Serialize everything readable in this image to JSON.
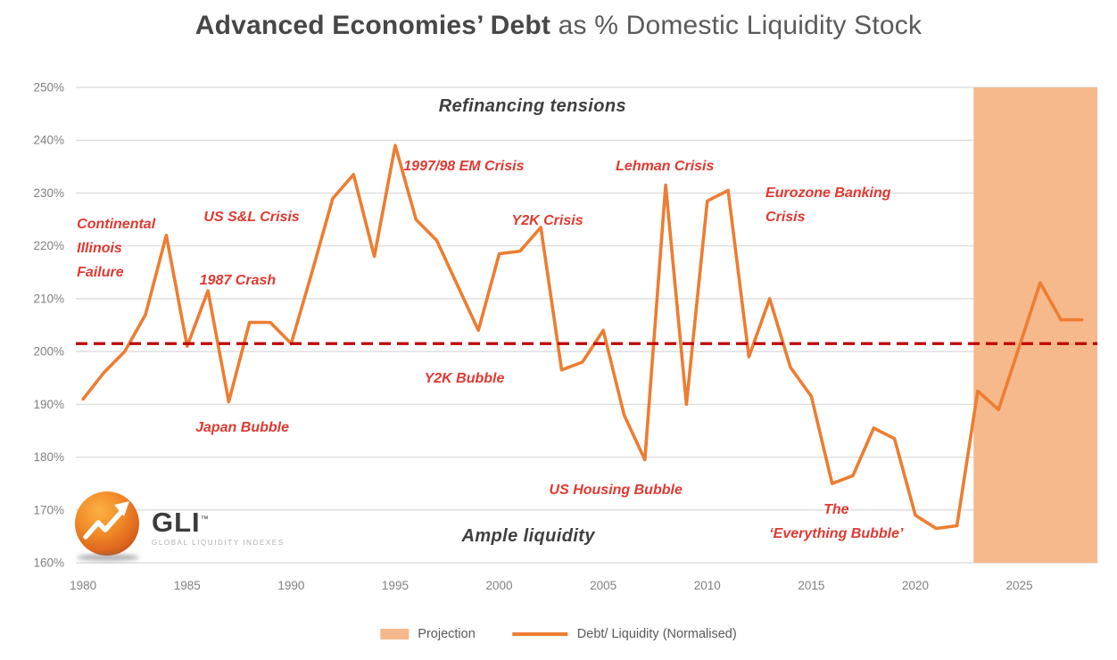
{
  "title": {
    "bold": "Advanced Economies’ Debt",
    "rest": " as % Domestic Liquidity Stock"
  },
  "logo": {
    "name": "GLI",
    "tm": "™",
    "tagline": "GLOBAL LIQUIDITY INDEXES"
  },
  "legend": [
    {
      "type": "patch",
      "label": "Projection",
      "color": "#F6B98C"
    },
    {
      "type": "line",
      "label": "Debt/ Liquidity (Normalised)",
      "color": "#ED7D31"
    }
  ],
  "colors": {
    "line": "#ED7D31",
    "projection_band": "#F6B98C",
    "baseline": "#C00000",
    "grid": "#D9D9D9",
    "axis_text": "#808080",
    "crisis_label": "#E03931",
    "regime_label": "#3F3F3F",
    "title_text": "#474747",
    "legend_text": "#595959"
  },
  "chart_data": {
    "type": "line",
    "title": "Advanced Economies’ Debt as % Domestic Liquidity Stock",
    "xlabel": "",
    "ylabel": "",
    "xlim": [
      1979.65,
      2028.75
    ],
    "ylim": [
      160,
      250
    ],
    "grid": "horizontal",
    "legend_position": "bottom",
    "x": [
      1980,
      1981,
      1982,
      1983,
      1984,
      1985,
      1986,
      1987,
      1988,
      1989,
      1990,
      1991,
      1992,
      1993,
      1994,
      1995,
      1996,
      1997,
      1998,
      1999,
      2000,
      2001,
      2002,
      2003,
      2004,
      2005,
      2006,
      2007,
      2008,
      2009,
      2010,
      2011,
      2012,
      2013,
      2014,
      2015,
      2016,
      2017,
      2018,
      2019,
      2020,
      2021,
      2022,
      2023,
      2024,
      2025,
      2026,
      2027,
      2028
    ],
    "series": [
      {
        "name": "Debt/ Liquidity (Normalised)",
        "values": [
          191,
          196,
          200,
          207,
          222,
          201,
          211.5,
          190.5,
          205.5,
          205.5,
          201.5,
          215,
          229,
          233.5,
          218,
          239,
          225,
          221,
          212.5,
          204,
          218.5,
          219,
          223.5,
          196.5,
          198,
          204,
          188,
          179.5,
          231.5,
          190,
          228.5,
          230.5,
          199,
          210,
          197,
          191.5,
          175,
          176.5,
          185.5,
          183.5,
          169,
          166.5,
          167,
          192.5,
          189,
          201,
          213,
          206,
          206
        ]
      }
    ],
    "baseline": {
      "value": 201.5,
      "style": "dashed"
    },
    "projection_band": {
      "x_start": 2022.8,
      "x_end": 2028.75
    },
    "y_ticks": [
      {
        "value": 250,
        "label": "250%"
      },
      {
        "value": 240,
        "label": "240%"
      },
      {
        "value": 230,
        "label": "230%"
      },
      {
        "value": 220,
        "label": "220%"
      },
      {
        "value": 210,
        "label": "210%"
      },
      {
        "value": 200,
        "label": "200%"
      },
      {
        "value": 190,
        "label": "190%"
      },
      {
        "value": 180,
        "label": "180%"
      },
      {
        "value": 170,
        "label": "170%"
      },
      {
        "value": 160,
        "label": "160%"
      }
    ],
    "x_ticks": [
      {
        "value": 1980,
        "label": "1980"
      },
      {
        "value": 1985,
        "label": "1985"
      },
      {
        "value": 1990,
        "label": "1990"
      },
      {
        "value": 1995,
        "label": "1995"
      },
      {
        "value": 2000,
        "label": "2000"
      },
      {
        "value": 2005,
        "label": "2005"
      },
      {
        "value": 2010,
        "label": "2010"
      },
      {
        "value": 2015,
        "label": "2015"
      },
      {
        "value": 2020,
        "label": "2020"
      },
      {
        "value": 2025,
        "label": "2025"
      }
    ],
    "annotations": [
      {
        "text": "Refinancing tensions",
        "x": 2001.6,
        "y": 248.3,
        "align": "center",
        "style": "regime"
      },
      {
        "text": "Ample liquidity",
        "x": 2001.4,
        "y": 166.9,
        "align": "center",
        "style": "regime"
      },
      {
        "text": "Continental\nIllinois\nFailure",
        "x": 1979.7,
        "y": 226.4,
        "align": "left",
        "style": "crisis"
      },
      {
        "text": "US S&L Crisis",
        "x": 1985.8,
        "y": 227.7,
        "align": "left",
        "style": "crisis"
      },
      {
        "text": "1987 Crash",
        "x": 1985.6,
        "y": 215.7,
        "align": "left",
        "style": "crisis"
      },
      {
        "text": "Japan Bubble",
        "x": 1985.4,
        "y": 187.8,
        "align": "left",
        "style": "crisis"
      },
      {
        "text": "1997/98 EM Crisis",
        "x": 1995.4,
        "y": 237.3,
        "align": "left",
        "style": "crisis"
      },
      {
        "text": "Y2K Crisis",
        "x": 2000.6,
        "y": 227.1,
        "align": "left",
        "style": "crisis"
      },
      {
        "text": "Y2K Bubble",
        "x": 1996.4,
        "y": 197.1,
        "align": "left",
        "style": "crisis"
      },
      {
        "text": "Lehman Crisis",
        "x": 2005.6,
        "y": 237.3,
        "align": "left",
        "style": "crisis"
      },
      {
        "text": "US Housing Bubble",
        "x": 2002.4,
        "y": 176.0,
        "align": "left",
        "style": "crisis"
      },
      {
        "text": "Eurozone Banking\nCrisis",
        "x": 2012.8,
        "y": 232.3,
        "align": "left",
        "style": "crisis"
      },
      {
        "text": "The\n‘Everything Bubble’",
        "x": 2016.2,
        "y": 172.3,
        "align": "center",
        "style": "crisis"
      }
    ]
  }
}
